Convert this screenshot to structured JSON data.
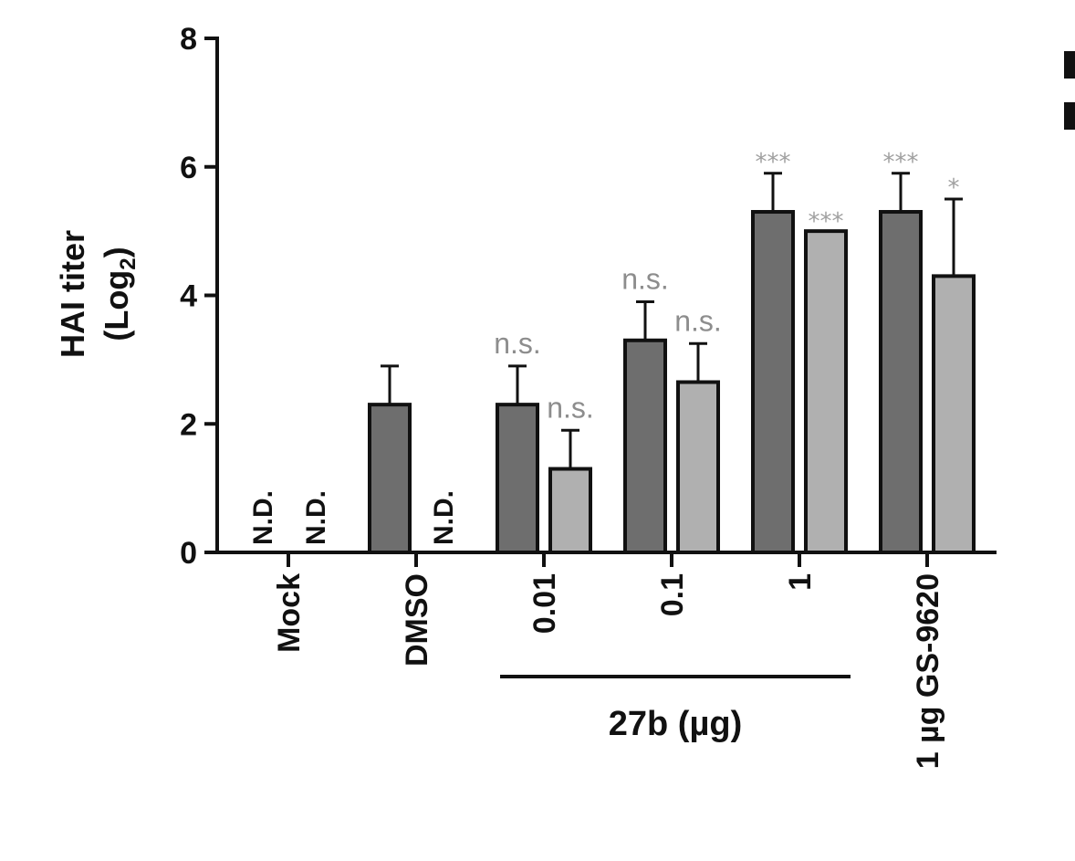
{
  "chart_data": {
    "type": "bar",
    "ylabel_line1": "HAI titer",
    "ylabel_line2_prefix": "(Log",
    "ylabel_line2_sub": "2",
    "ylabel_line2_suffix": ")",
    "ylim": [
      0,
      8
    ],
    "yticks": [
      "0",
      "2",
      "4",
      "6",
      "8"
    ],
    "group_label": "27b (µg)",
    "categories": [
      "Mock",
      "DMSO",
      "0.01",
      "0.1",
      "1",
      "1 µg GS-9620"
    ],
    "series": [
      {
        "color": "#6e6e6e",
        "values": [
          null,
          2.3,
          2.3,
          3.3,
          5.3,
          5.3
        ],
        "errors": [
          null,
          0.6,
          0.6,
          0.6,
          0.6,
          0.6
        ],
        "annotations": [
          "N.D.",
          "",
          "n.s.",
          "n.s.",
          "***",
          "***"
        ]
      },
      {
        "color": "#b0b0b0",
        "values": [
          null,
          null,
          1.3,
          2.65,
          5.0,
          4.3
        ],
        "errors": [
          null,
          null,
          0.6,
          0.6,
          0.0,
          1.2
        ],
        "annotations": [
          "N.D.",
          "N.D.",
          "n.s.",
          "n.s.",
          "***",
          "*"
        ]
      }
    ]
  }
}
